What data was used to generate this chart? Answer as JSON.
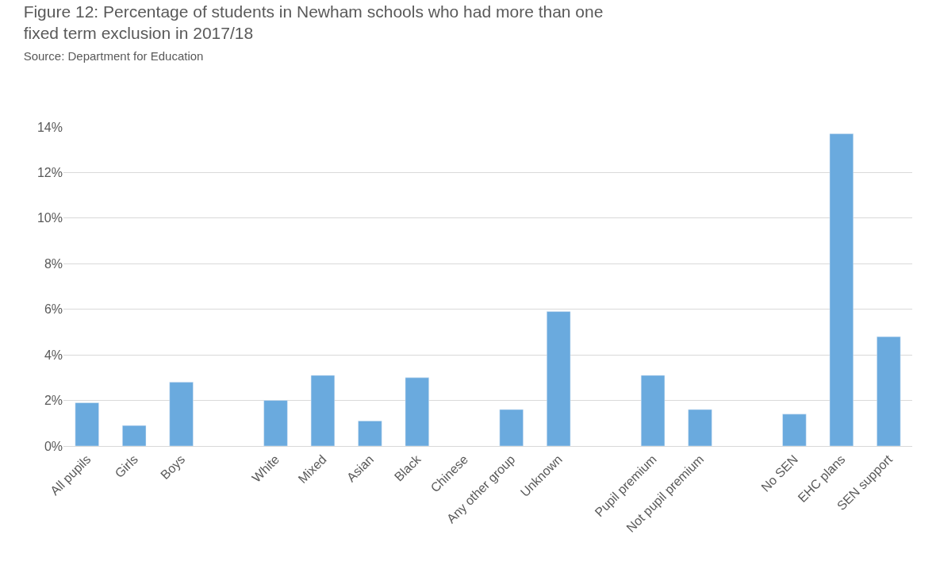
{
  "chart_data": {
    "type": "bar",
    "title": "Figure 12: Percentage of students in Newham schools who had more than one fixed term exclusion in 2017/18",
    "subtitle": "Source: Department for Education",
    "categories": [
      "All pupils",
      "Girls",
      "Boys",
      null,
      "White",
      "Mixed",
      "Asian",
      "Black",
      "Chinese",
      "Any other group",
      "Unknown",
      null,
      "Pupil premium",
      "Not pupil premium",
      null,
      "No SEN",
      "EHC plans",
      "SEN support"
    ],
    "values": [
      1.9,
      0.9,
      2.8,
      null,
      2.0,
      3.1,
      1.1,
      3.0,
      null,
      1.6,
      5.9,
      null,
      3.1,
      1.6,
      null,
      1.4,
      13.7,
      4.8
    ],
    "color": "#6aaade",
    "ylim": [
      0,
      14
    ],
    "yticks": [
      {
        "value": 0,
        "label": "0%"
      },
      {
        "value": 2,
        "label": "2%"
      },
      {
        "value": 4,
        "label": "4%"
      },
      {
        "value": 6,
        "label": "6%"
      },
      {
        "value": 8,
        "label": "8%"
      },
      {
        "value": 10,
        "label": "10%"
      },
      {
        "value": 12,
        "label": "12%"
      },
      {
        "value": 14,
        "label": "14%"
      }
    ],
    "grid": "y"
  }
}
